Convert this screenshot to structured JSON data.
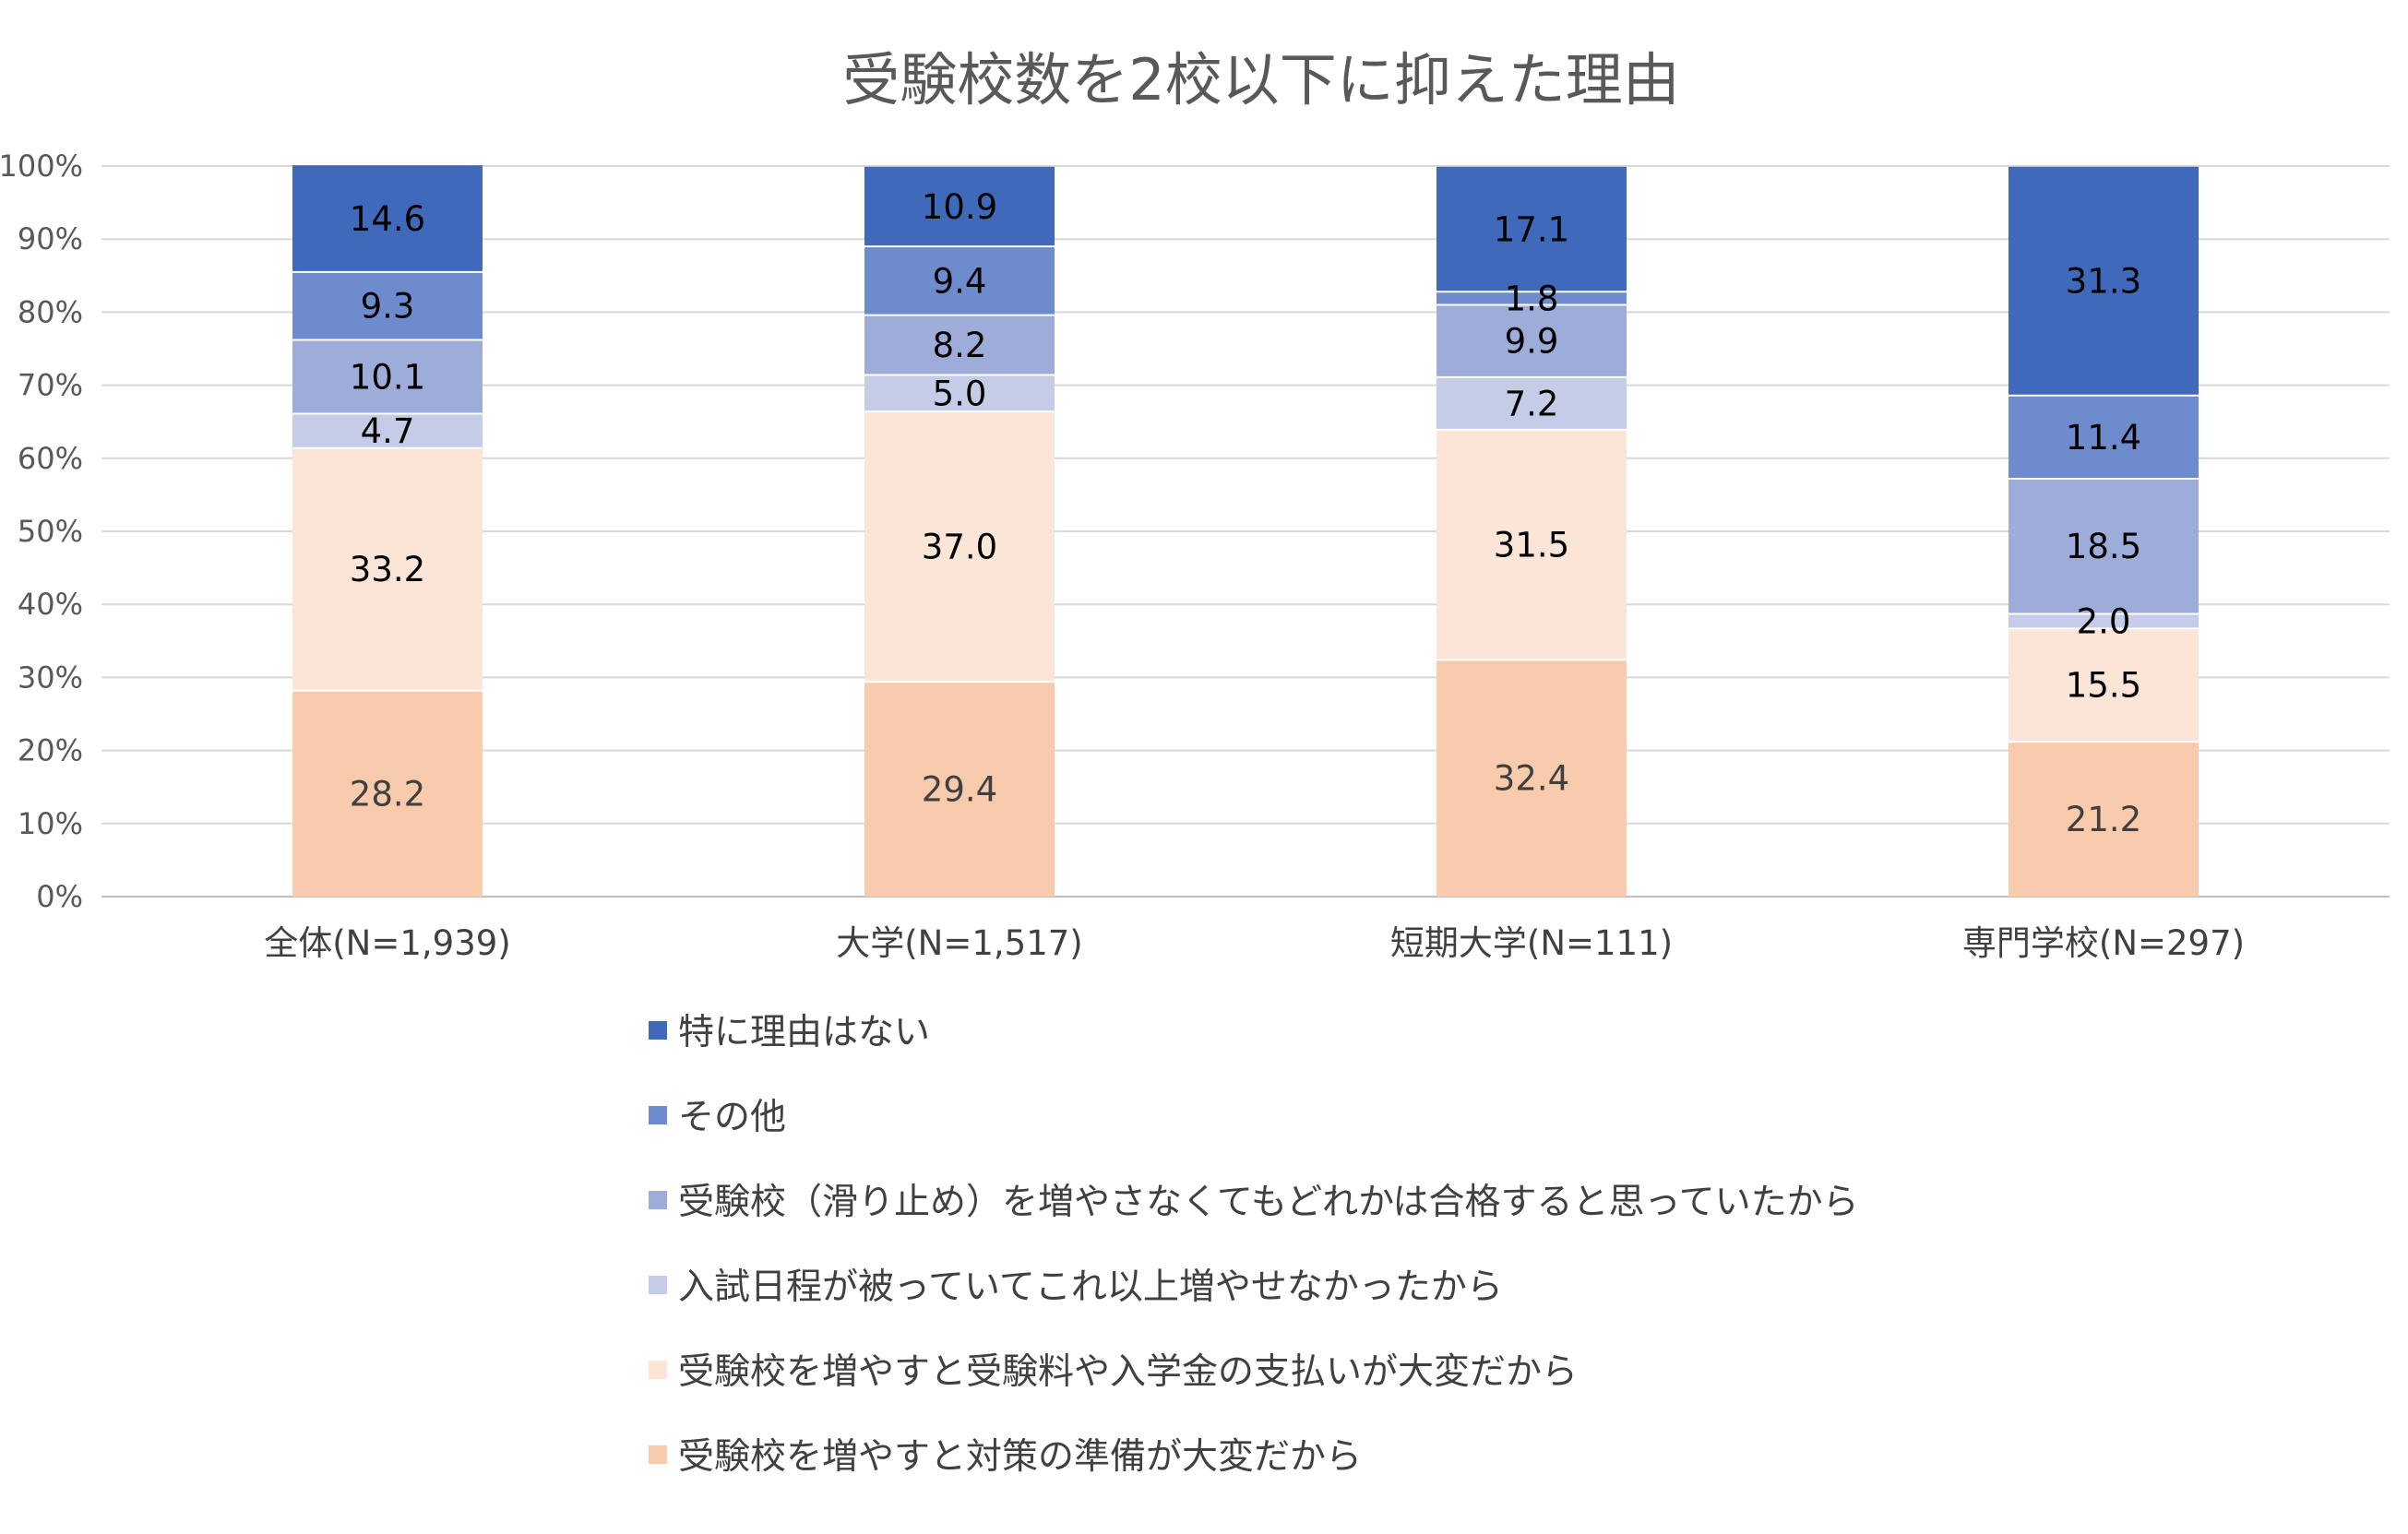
{
  "chart_data": {
    "type": "bar",
    "stacked": true,
    "percent_stacked": true,
    "title": "受験校数を2校以下に抑えた理由",
    "xlabel": "",
    "ylabel": "",
    "ylim": [
      0,
      100
    ],
    "y_ticks": [
      "0%",
      "10%",
      "20%",
      "30%",
      "40%",
      "50%",
      "60%",
      "70%",
      "80%",
      "90%",
      "100%"
    ],
    "grid": true,
    "legend_position": "bottom",
    "categories": [
      "全体(N=1,939)",
      "大学(N=1,517)",
      "短期大学(N=111)",
      "専門学校(N=297)"
    ],
    "series": [
      {
        "name": "受験校を増やすと対策の準備が大変だから",
        "color": "#f8cbad",
        "label_color": "#404040",
        "values": [
          28.2,
          29.4,
          32.4,
          21.2
        ]
      },
      {
        "name": "受験校を増やすと受験料や入学金の支払いが大変だから",
        "color": "#fbe5d6",
        "label_color": "#000000",
        "values": [
          33.2,
          37.0,
          31.5,
          15.5
        ]
      },
      {
        "name": "入試日程が被っていてこれ以上増やせなかったから",
        "color": "#c5cce8",
        "label_color": "#000000",
        "values": [
          4.7,
          5.0,
          7.2,
          2.0
        ]
      },
      {
        "name": "受験校（滑り止め）を増やさなくてもどれかは合格すると思っていたから",
        "color": "#9eacda",
        "label_color": "#000000",
        "values": [
          10.1,
          8.2,
          9.9,
          18.5
        ]
      },
      {
        "name": "その他",
        "color": "#6e8bcd",
        "label_color": "#000000",
        "values": [
          9.3,
          9.4,
          1.8,
          11.4
        ]
      },
      {
        "name": "特に理由はない",
        "color": "#3f69bb",
        "label_color": "#000000",
        "values": [
          14.6,
          10.9,
          17.1,
          31.3
        ]
      }
    ]
  }
}
